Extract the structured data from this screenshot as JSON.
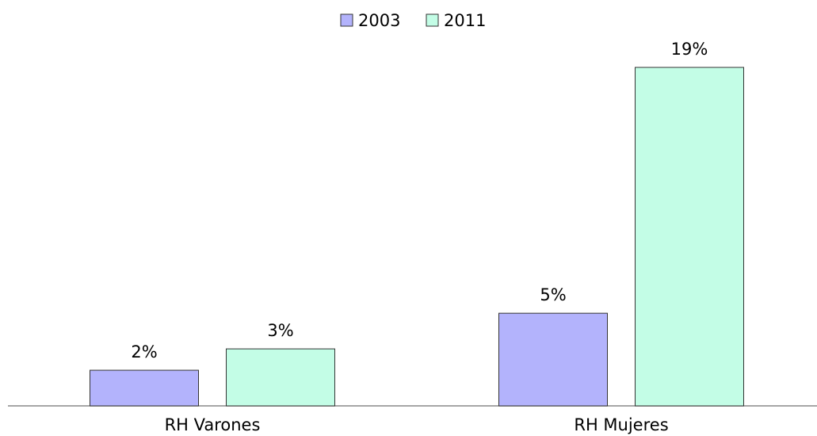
{
  "chart_data": {
    "type": "bar",
    "categories": [
      "RH Varones",
      "RH Mujeres"
    ],
    "series": [
      {
        "name": "2003",
        "color": "#b3b3fc",
        "values": [
          2,
          5.2
        ],
        "value_labels": [
          "2%",
          "5%"
        ]
      },
      {
        "name": "2011",
        "color": "#c3fde6",
        "values": [
          3.2,
          19
        ],
        "value_labels": [
          "3%",
          "19%"
        ]
      }
    ],
    "legend": "top"
  }
}
